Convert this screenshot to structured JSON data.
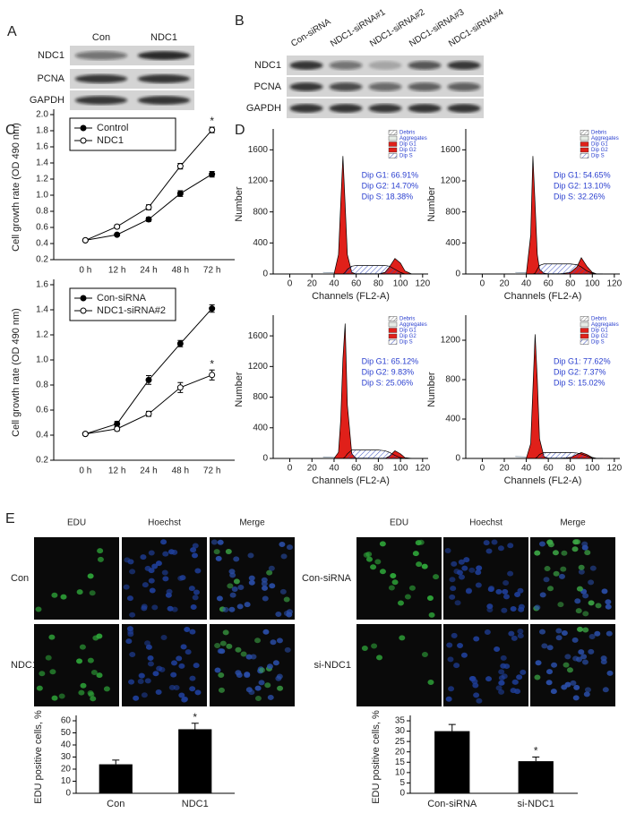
{
  "panel_labels": [
    "A",
    "B",
    "C",
    "D",
    "E"
  ],
  "blot_a": {
    "lanes": [
      "Con",
      "NDC1"
    ],
    "rows": [
      "NDC1",
      "PCNA",
      "GAPDH"
    ]
  },
  "blot_b": {
    "lanes": [
      "Con-siRNA",
      "NDC1-siRNA#1",
      "NDC1-siRNA#2",
      "NDC1-siRNA#3",
      "NDC1-siRNA#4"
    ],
    "rows": [
      "NDC1",
      "PCNA",
      "GAPDH"
    ]
  },
  "edu_images": {
    "left_columns": [
      "EDU",
      "Hoechst",
      "Merge"
    ],
    "right_columns": [
      "EDU",
      "Hoechst",
      "Merge"
    ],
    "left_rows": [
      "Con",
      "NDC1"
    ],
    "right_rows": [
      "Con-siRNA",
      "si-NDC1"
    ]
  },
  "chart_data": [
    {
      "type": "line",
      "ylabel": "Cell growth rate (OD 490 nm)",
      "categories": [
        "0 h",
        "12 h",
        "24 h",
        "48 h",
        "72 h"
      ],
      "series": [
        {
          "name": "Control",
          "color": "#000000",
          "marker": "filled",
          "values": [
            0.44,
            0.51,
            0.7,
            1.02,
            1.26
          ],
          "errors": [
            0.01,
            0.015,
            0.025,
            0.035,
            0.035
          ]
        },
        {
          "name": "NDC1",
          "color": "#000000",
          "marker": "open",
          "values": [
            0.44,
            0.61,
            0.85,
            1.36,
            1.81
          ],
          "errors": [
            0.01,
            0.02,
            0.03,
            0.035,
            0.035
          ]
        }
      ],
      "ylim": [
        0.2,
        2.0
      ],
      "yticks": [
        0.2,
        0.4,
        0.6,
        0.8,
        {
          "value": 1,
          "label": "1.0"
        },
        1.2,
        1.4,
        1.6,
        1.8,
        {
          "value": 2,
          "label": "2.0"
        }
      ],
      "annotation": "*",
      "legend": "upper left"
    },
    {
      "type": "line",
      "ylabel": "Cell growth rate (OD 490 nm)",
      "categories": [
        "0 h",
        "12 h",
        "24 h",
        "48 h",
        "72 h"
      ],
      "series": [
        {
          "name": "Con-siRNA",
          "color": "#000000",
          "marker": "filled",
          "values": [
            0.41,
            0.49,
            0.84,
            1.13,
            1.41
          ],
          "errors": [
            0.01,
            0.02,
            0.035,
            0.025,
            0.03
          ]
        },
        {
          "name": "NDC1-siRNA#2",
          "color": "#000000",
          "marker": "open",
          "values": [
            0.41,
            0.45,
            0.57,
            0.78,
            0.88
          ],
          "errors": [
            0.01,
            0.015,
            0.02,
            0.04,
            0.04
          ]
        }
      ],
      "ylim": [
        0.2,
        1.6
      ],
      "yticks": [
        0.2,
        0.4,
        0.6,
        0.8,
        {
          "value": 1,
          "label": "1.0"
        },
        1.2,
        1.4,
        1.6
      ],
      "annotation": "*",
      "legend": "upper left"
    },
    {
      "type": "histogram",
      "xlabel": "Channels (FL2-A)",
      "ylabel": "Number",
      "x": [
        30,
        40,
        44,
        46,
        48,
        50,
        52,
        56,
        60,
        70,
        80,
        86,
        90,
        95,
        100,
        104,
        110
      ],
      "series": [
        {
          "name": "Debris",
          "color": "#8a9aa8",
          "style": "line",
          "values": [
            20,
            15,
            12,
            10,
            10,
            10,
            10,
            8,
            6,
            5,
            4,
            4,
            3,
            3,
            3,
            2,
            2
          ]
        },
        {
          "name": "Aggregates",
          "color": "#b8c4b8",
          "style": "line",
          "values": [
            0,
            0,
            0,
            0,
            0,
            0,
            0,
            0,
            0,
            0,
            0,
            0,
            0,
            0,
            0,
            0,
            0
          ]
        },
        {
          "name": "Dip G1",
          "color": "#e0201a",
          "style": "solid",
          "values": [
            0,
            0,
            250,
            900,
            1520,
            900,
            250,
            20,
            0,
            0,
            0,
            0,
            0,
            0,
            0,
            0,
            0
          ]
        },
        {
          "name": "Dip G2",
          "color": "#e0201a",
          "style": "solid",
          "values": [
            0,
            0,
            0,
            0,
            0,
            0,
            0,
            0,
            0,
            0,
            0,
            20,
            90,
            200,
            140,
            40,
            0
          ]
        },
        {
          "name": "Dip S",
          "color": "#3a4fc0",
          "style": "hatch",
          "values": [
            0,
            0,
            0,
            0,
            0,
            20,
            60,
            100,
            110,
            110,
            110,
            110,
            100,
            60,
            20,
            0,
            0
          ]
        }
      ],
      "xlim": [
        -15,
        125
      ],
      "xticks": [
        0,
        20,
        40,
        60,
        80,
        100,
        120
      ],
      "ylim": [
        0,
        1800
      ],
      "yticks": [
        0,
        400,
        800,
        1200,
        1600
      ],
      "annotation": [
        "Dip G1: 66.91%",
        "Dip G2: 14.70%",
        "Dip S: 18.38%"
      ],
      "legend": "upper right"
    },
    {
      "type": "histogram",
      "xlabel": "Channels (FL2-A)",
      "ylabel": "Number",
      "x": [
        30,
        40,
        44,
        46,
        48,
        50,
        52,
        56,
        60,
        70,
        80,
        86,
        90,
        95,
        100,
        104,
        110
      ],
      "series": [
        {
          "name": "Debris",
          "color": "#8a9aa8",
          "style": "line",
          "values": [
            20,
            15,
            12,
            10,
            10,
            10,
            10,
            8,
            6,
            5,
            4,
            4,
            3,
            3,
            3,
            2,
            2
          ]
        },
        {
          "name": "Aggregates",
          "color": "#b8c4b8",
          "style": "line",
          "values": [
            0,
            0,
            0,
            0,
            0,
            0,
            0,
            0,
            0,
            0,
            0,
            0,
            0,
            0,
            0,
            0,
            0
          ]
        },
        {
          "name": "Dip G1",
          "color": "#e0201a",
          "style": "solid",
          "values": [
            0,
            0,
            500,
            1520,
            900,
            250,
            60,
            10,
            0,
            0,
            0,
            0,
            0,
            0,
            0,
            0,
            0
          ]
        },
        {
          "name": "Dip G2",
          "color": "#e0201a",
          "style": "solid",
          "values": [
            0,
            0,
            0,
            0,
            0,
            0,
            0,
            0,
            0,
            0,
            20,
            90,
            210,
            100,
            20,
            0,
            0
          ]
        },
        {
          "name": "Dip S",
          "color": "#3a4fc0",
          "style": "hatch",
          "values": [
            0,
            0,
            0,
            0,
            10,
            60,
            110,
            130,
            130,
            130,
            130,
            120,
            90,
            40,
            10,
            0,
            0
          ]
        }
      ],
      "xlim": [
        -15,
        125
      ],
      "xticks": [
        0,
        20,
        40,
        60,
        80,
        100,
        120
      ],
      "ylim": [
        0,
        1800
      ],
      "yticks": [
        0,
        400,
        800,
        1200,
        1600
      ],
      "annotation": [
        "Dip G1: 54.65%",
        "Dip G2: 13.10%",
        "Dip S: 32.26%"
      ],
      "legend": "upper right"
    },
    {
      "type": "histogram",
      "xlabel": "Channels (FL2-A)",
      "ylabel": "Number",
      "x": [
        30,
        40,
        44,
        46,
        48,
        50,
        52,
        56,
        60,
        70,
        80,
        86,
        90,
        95,
        100,
        104,
        110
      ],
      "series": [
        {
          "name": "Debris",
          "color": "#8a9aa8",
          "style": "line",
          "values": [
            20,
            15,
            12,
            10,
            10,
            10,
            10,
            8,
            6,
            5,
            4,
            4,
            3,
            3,
            3,
            2,
            2
          ]
        },
        {
          "name": "Aggregates",
          "color": "#b8c4b8",
          "style": "line",
          "values": [
            0,
            0,
            0,
            0,
            0,
            0,
            0,
            0,
            0,
            0,
            0,
            0,
            0,
            0,
            0,
            0,
            0
          ]
        },
        {
          "name": "Dip G1",
          "color": "#e0201a",
          "style": "solid",
          "values": [
            0,
            0,
            80,
            500,
            1300,
            1760,
            700,
            60,
            0,
            0,
            0,
            0,
            0,
            0,
            0,
            0,
            0
          ]
        },
        {
          "name": "Dip G2",
          "color": "#e0201a",
          "style": "solid",
          "values": [
            0,
            0,
            0,
            0,
            0,
            0,
            0,
            0,
            0,
            0,
            0,
            0,
            30,
            100,
            60,
            10,
            0
          ]
        },
        {
          "name": "Dip S",
          "color": "#3a4fc0",
          "style": "hatch",
          "values": [
            0,
            0,
            0,
            0,
            0,
            20,
            60,
            110,
            110,
            110,
            110,
            100,
            80,
            40,
            10,
            0,
            0
          ]
        }
      ],
      "xlim": [
        -15,
        125
      ],
      "xticks": [
        0,
        20,
        40,
        60,
        80,
        100,
        120
      ],
      "ylim": [
        0,
        1800
      ],
      "yticks": [
        0,
        400,
        800,
        1200,
        1600
      ],
      "annotation": [
        "Dip G1: 65.12%",
        "Dip G2: 9.83%",
        "Dip S: 25.06%"
      ],
      "legend": "upper right"
    },
    {
      "type": "histogram",
      "xlabel": "Channels (FL2-A)",
      "ylabel": "Number",
      "x": [
        30,
        40,
        44,
        46,
        48,
        50,
        52,
        56,
        60,
        70,
        80,
        86,
        90,
        95,
        100,
        104,
        110
      ],
      "series": [
        {
          "name": "Debris",
          "color": "#8a9aa8",
          "style": "line",
          "values": [
            20,
            15,
            12,
            10,
            10,
            10,
            10,
            8,
            6,
            5,
            4,
            4,
            3,
            3,
            3,
            2,
            2
          ]
        },
        {
          "name": "Aggregates",
          "color": "#b8c4b8",
          "style": "line",
          "values": [
            0,
            0,
            0,
            0,
            0,
            0,
            0,
            0,
            0,
            0,
            0,
            0,
            0,
            0,
            0,
            0,
            0
          ]
        },
        {
          "name": "Dip G1",
          "color": "#e0201a",
          "style": "solid",
          "values": [
            0,
            0,
            150,
            700,
            1260,
            800,
            200,
            20,
            0,
            0,
            0,
            0,
            0,
            0,
            0,
            0,
            0
          ]
        },
        {
          "name": "Dip G2",
          "color": "#e0201a",
          "style": "solid",
          "values": [
            0,
            0,
            0,
            0,
            0,
            0,
            0,
            0,
            0,
            0,
            10,
            40,
            60,
            40,
            10,
            0,
            0
          ]
        },
        {
          "name": "Dip S",
          "color": "#3a4fc0",
          "style": "hatch",
          "values": [
            0,
            0,
            0,
            0,
            0,
            15,
            40,
            60,
            60,
            60,
            60,
            55,
            45,
            25,
            5,
            0,
            0
          ]
        }
      ],
      "xlim": [
        -15,
        125
      ],
      "xticks": [
        0,
        20,
        40,
        60,
        80,
        100,
        120
      ],
      "ylim": [
        0,
        1400
      ],
      "yticks": [
        0,
        400,
        800,
        1200
      ],
      "annotation": [
        "Dip G1: 77.62%",
        "Dip G2: 7.37%",
        "Dip S: 15.02%"
      ],
      "legend": "upper right"
    },
    {
      "type": "bar",
      "ylabel": "EDU positive cells, %",
      "categories": [
        "Con",
        "NDC1"
      ],
      "values": [
        24,
        53
      ],
      "errors": [
        3.5,
        5
      ],
      "color": "#000000",
      "ylim": [
        0,
        60
      ],
      "yticks": [
        0,
        10,
        20,
        30,
        40,
        50,
        60
      ],
      "annotation": "*"
    },
    {
      "type": "bar",
      "ylabel": "EDU positive cells, %",
      "categories": [
        "Con-siRNA",
        "si-NDC1"
      ],
      "values": [
        30,
        15.5
      ],
      "errors": [
        3.2,
        2
      ],
      "color": "#000000",
      "ylim": [
        0,
        35
      ],
      "yticks": [
        0,
        5,
        10,
        15,
        20,
        25,
        30,
        35
      ],
      "annotation": "*"
    }
  ]
}
